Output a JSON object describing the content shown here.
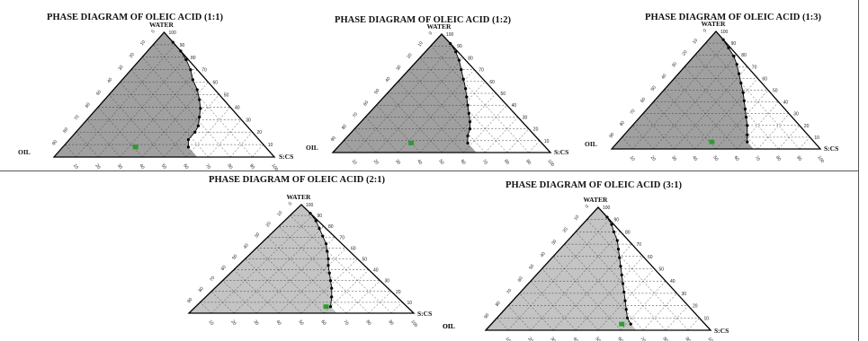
{
  "colors": {
    "region_fill": "#a0a0a0",
    "region_fill_light": "#c4c4c4",
    "grid": "#3a3a3a",
    "frame": "#000000",
    "point": "#000000",
    "formulation_marker": "#2e9b2e"
  },
  "tick_values": [
    10,
    20,
    30,
    40,
    50,
    60,
    70,
    80,
    90,
    100
  ],
  "chart_data": [
    {
      "type": "scatter",
      "subtype": "ternary-phase-diagram",
      "title": "PHASE DIAGRAM OF OLEIC ACID (1:1)",
      "vertices": {
        "top": "WATER",
        "left": "OIL",
        "right": "S:CS"
      },
      "axis_range": [
        0,
        100
      ],
      "grid": true,
      "region": "shaded microemulsion region",
      "boundary_points": [
        {
          "water": 92,
          "scs": 8
        },
        {
          "water": 85,
          "scs": 15
        },
        {
          "water": 78,
          "scs": 21
        },
        {
          "water": 70,
          "scs": 27
        },
        {
          "water": 62,
          "scs": 32
        },
        {
          "water": 54,
          "scs": 38
        },
        {
          "water": 46,
          "scs": 43
        },
        {
          "water": 39,
          "scs": 47
        },
        {
          "water": 32,
          "scs": 50
        },
        {
          "water": 25,
          "scs": 53
        },
        {
          "water": 20,
          "scs": 54
        },
        {
          "water": 14,
          "scs": 54
        },
        {
          "water": 8,
          "scs": 57
        }
      ],
      "formulation": {
        "water": 8,
        "scs": 33
      }
    },
    {
      "type": "scatter",
      "subtype": "ternary-phase-diagram",
      "title": "PHASE DIAGRAM OF OLEIC ACID (1:2)",
      "vertices": {
        "top": "WATER",
        "left": "OIL",
        "right": "S:CS"
      },
      "axis_range": [
        0,
        100
      ],
      "grid": true,
      "region": "shaded microemulsion region",
      "boundary_points": [
        {
          "water": 92,
          "scs": 8
        },
        {
          "water": 85,
          "scs": 14
        },
        {
          "water": 78,
          "scs": 19
        },
        {
          "water": 70,
          "scs": 24
        },
        {
          "water": 62,
          "scs": 29
        },
        {
          "water": 54,
          "scs": 34
        },
        {
          "water": 47,
          "scs": 38
        },
        {
          "water": 40,
          "scs": 42
        },
        {
          "water": 33,
          "scs": 46
        },
        {
          "water": 26,
          "scs": 50
        },
        {
          "water": 20,
          "scs": 53
        },
        {
          "water": 14,
          "scs": 55
        },
        {
          "water": 8,
          "scs": 58
        }
      ],
      "formulation": {
        "water": 8,
        "scs": 32
      }
    },
    {
      "type": "scatter",
      "subtype": "ternary-phase-diagram",
      "title": "PHASE DIAGRAM OF OLEIC ACID (1:3)",
      "vertices": {
        "top": "WATER",
        "left": "OIL",
        "right": "S:CS"
      },
      "axis_range": [
        0,
        100
      ],
      "grid": true,
      "region": "shaded microemulsion region",
      "boundary_points": [
        {
          "water": 93,
          "scs": 7
        },
        {
          "water": 86,
          "scs": 13
        },
        {
          "water": 79,
          "scs": 19
        },
        {
          "water": 72,
          "scs": 24
        },
        {
          "water": 64,
          "scs": 29
        },
        {
          "water": 56,
          "scs": 34
        },
        {
          "water": 48,
          "scs": 39
        },
        {
          "water": 41,
          "scs": 43
        },
        {
          "water": 34,
          "scs": 47
        },
        {
          "water": 27,
          "scs": 51
        },
        {
          "water": 20,
          "scs": 55
        },
        {
          "water": 12,
          "scs": 59
        },
        {
          "water": 6,
          "scs": 62
        }
      ],
      "formulation": {
        "water": 6,
        "scs": 45
      }
    },
    {
      "type": "scatter",
      "subtype": "ternary-phase-diagram",
      "title": "PHASE DIAGRAM OF OLEIC ACID (2:1)",
      "vertices": {
        "top": "WATER",
        "left": "OIL",
        "right": "S:CS"
      },
      "axis_range": [
        0,
        100
      ],
      "grid": true,
      "region": "shaded microemulsion region",
      "boundary_points": [
        {
          "water": 92,
          "scs": 8
        },
        {
          "water": 85,
          "scs": 14
        },
        {
          "water": 78,
          "scs": 19
        },
        {
          "water": 71,
          "scs": 24
        },
        {
          "water": 64,
          "scs": 29
        },
        {
          "water": 57,
          "scs": 33
        },
        {
          "water": 50,
          "scs": 37
        },
        {
          "water": 44,
          "scs": 40
        },
        {
          "water": 37,
          "scs": 44
        },
        {
          "water": 30,
          "scs": 48
        },
        {
          "water": 23,
          "scs": 52
        },
        {
          "water": 15,
          "scs": 56
        },
        {
          "water": 6,
          "scs": 60
        }
      ],
      "formulation": {
        "water": 6,
        "scs": 58
      }
    },
    {
      "type": "scatter",
      "subtype": "ternary-phase-diagram",
      "title": "PHASE DIAGRAM OF OLEIC ACID (3:1)",
      "vertices": {
        "top": "WATER",
        "left": "OIL",
        "right": "S:CS"
      },
      "axis_range": [
        0,
        100
      ],
      "grid": true,
      "region": "shaded microemulsion region",
      "boundary_points": [
        {
          "water": 92,
          "scs": 8
        },
        {
          "water": 86,
          "scs": 13
        },
        {
          "water": 80,
          "scs": 17
        },
        {
          "water": 73,
          "scs": 22
        },
        {
          "water": 66,
          "scs": 26
        },
        {
          "water": 59,
          "scs": 30
        },
        {
          "water": 52,
          "scs": 34
        },
        {
          "water": 45,
          "scs": 38
        },
        {
          "water": 38,
          "scs": 42
        },
        {
          "water": 31,
          "scs": 46
        },
        {
          "water": 24,
          "scs": 50
        },
        {
          "water": 17,
          "scs": 54
        },
        {
          "water": 10,
          "scs": 58
        },
        {
          "water": 5,
          "scs": 62
        }
      ],
      "formulation": {
        "water": 5,
        "scs": 58
      }
    }
  ]
}
